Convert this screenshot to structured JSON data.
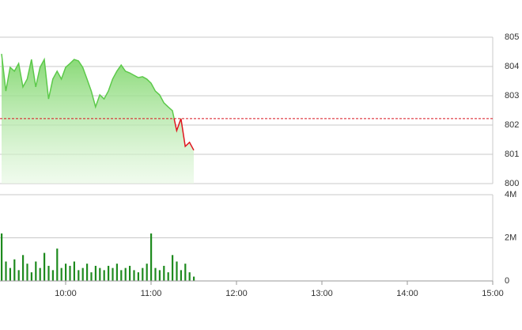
{
  "chart_data": [
    {
      "type": "area",
      "x": [
        "9:15",
        "9:18",
        "9:21",
        "9:24",
        "9:27",
        "9:30",
        "9:33",
        "9:36",
        "9:39",
        "9:42",
        "9:45",
        "9:48",
        "9:51",
        "9:54",
        "9:57",
        "10:00",
        "10:03",
        "10:06",
        "10:09",
        "10:12",
        "10:15",
        "10:18",
        "10:21",
        "10:24",
        "10:27",
        "10:30",
        "10:33",
        "10:36",
        "10:39",
        "10:42",
        "10:45",
        "10:48",
        "10:51",
        "10:54",
        "10:57",
        "11:00",
        "11:03",
        "11:06",
        "11:09",
        "11:12",
        "11:15",
        "11:18",
        "11:21",
        "11:24",
        "11:27",
        "11:30"
      ],
      "values": [
        804.43,
        803.16,
        803.97,
        803.84,
        804.1,
        803.3,
        803.57,
        804.24,
        803.3,
        803.97,
        804.24,
        802.89,
        803.57,
        803.84,
        803.57,
        803.97,
        804.1,
        804.24,
        804.19,
        803.97,
        803.57,
        803.16,
        802.62,
        803.03,
        802.89,
        803.16,
        803.57,
        803.84,
        804.05,
        803.84,
        803.78,
        803.7,
        803.62,
        803.65,
        803.57,
        803.43,
        803.16,
        803.03,
        802.76,
        802.62,
        802.49,
        801.81,
        802.22,
        801.27,
        801.41,
        801.14
      ],
      "reference": 802.22,
      "color": "#5cc94a",
      "color_below": "#e0141e",
      "reference_color": "#d9141e",
      "xlim": [
        "9:15",
        "15:00"
      ],
      "ylim": [
        800,
        805
      ],
      "yticks": [
        800,
        801,
        802,
        803,
        804,
        805
      ],
      "grid": true
    },
    {
      "type": "bar",
      "x": [
        "9:15",
        "9:18",
        "9:21",
        "9:24",
        "9:27",
        "9:30",
        "9:33",
        "9:36",
        "9:39",
        "9:42",
        "9:45",
        "9:48",
        "9:51",
        "9:54",
        "9:57",
        "10:00",
        "10:03",
        "10:06",
        "10:09",
        "10:12",
        "10:15",
        "10:18",
        "10:21",
        "10:24",
        "10:27",
        "10:30",
        "10:33",
        "10:36",
        "10:39",
        "10:42",
        "10:45",
        "10:48",
        "10:51",
        "10:54",
        "10:57",
        "11:00",
        "11:03",
        "11:06",
        "11:09",
        "11:12",
        "11:15",
        "11:18",
        "11:21",
        "11:24",
        "11:27",
        "11:30"
      ],
      "values": [
        2200000,
        900000,
        600000,
        1000000,
        500000,
        1200000,
        800000,
        400000,
        900000,
        600000,
        1300000,
        700000,
        500000,
        1500000,
        600000,
        800000,
        700000,
        900000,
        500000,
        600000,
        800000,
        400000,
        700000,
        600000,
        500000,
        700000,
        600000,
        800000,
        500000,
        600000,
        700000,
        500000,
        400000,
        600000,
        800000,
        2200000,
        600000,
        500000,
        700000,
        400000,
        1200000,
        900000,
        500000,
        800000,
        400000,
        200000
      ],
      "color": "#1e8a1e",
      "xlim": [
        "9:15",
        "15:00"
      ],
      "xticks": [
        "10:00",
        "11:00",
        "12:00",
        "13:00",
        "14:00",
        "15:00"
      ],
      "ylim": [
        0,
        4000000
      ],
      "yticks": [
        0,
        {
          "value": 2000000,
          "label": "2M"
        },
        {
          "value": 4000000,
          "label": "4M"
        }
      ],
      "grid": true
    }
  ]
}
